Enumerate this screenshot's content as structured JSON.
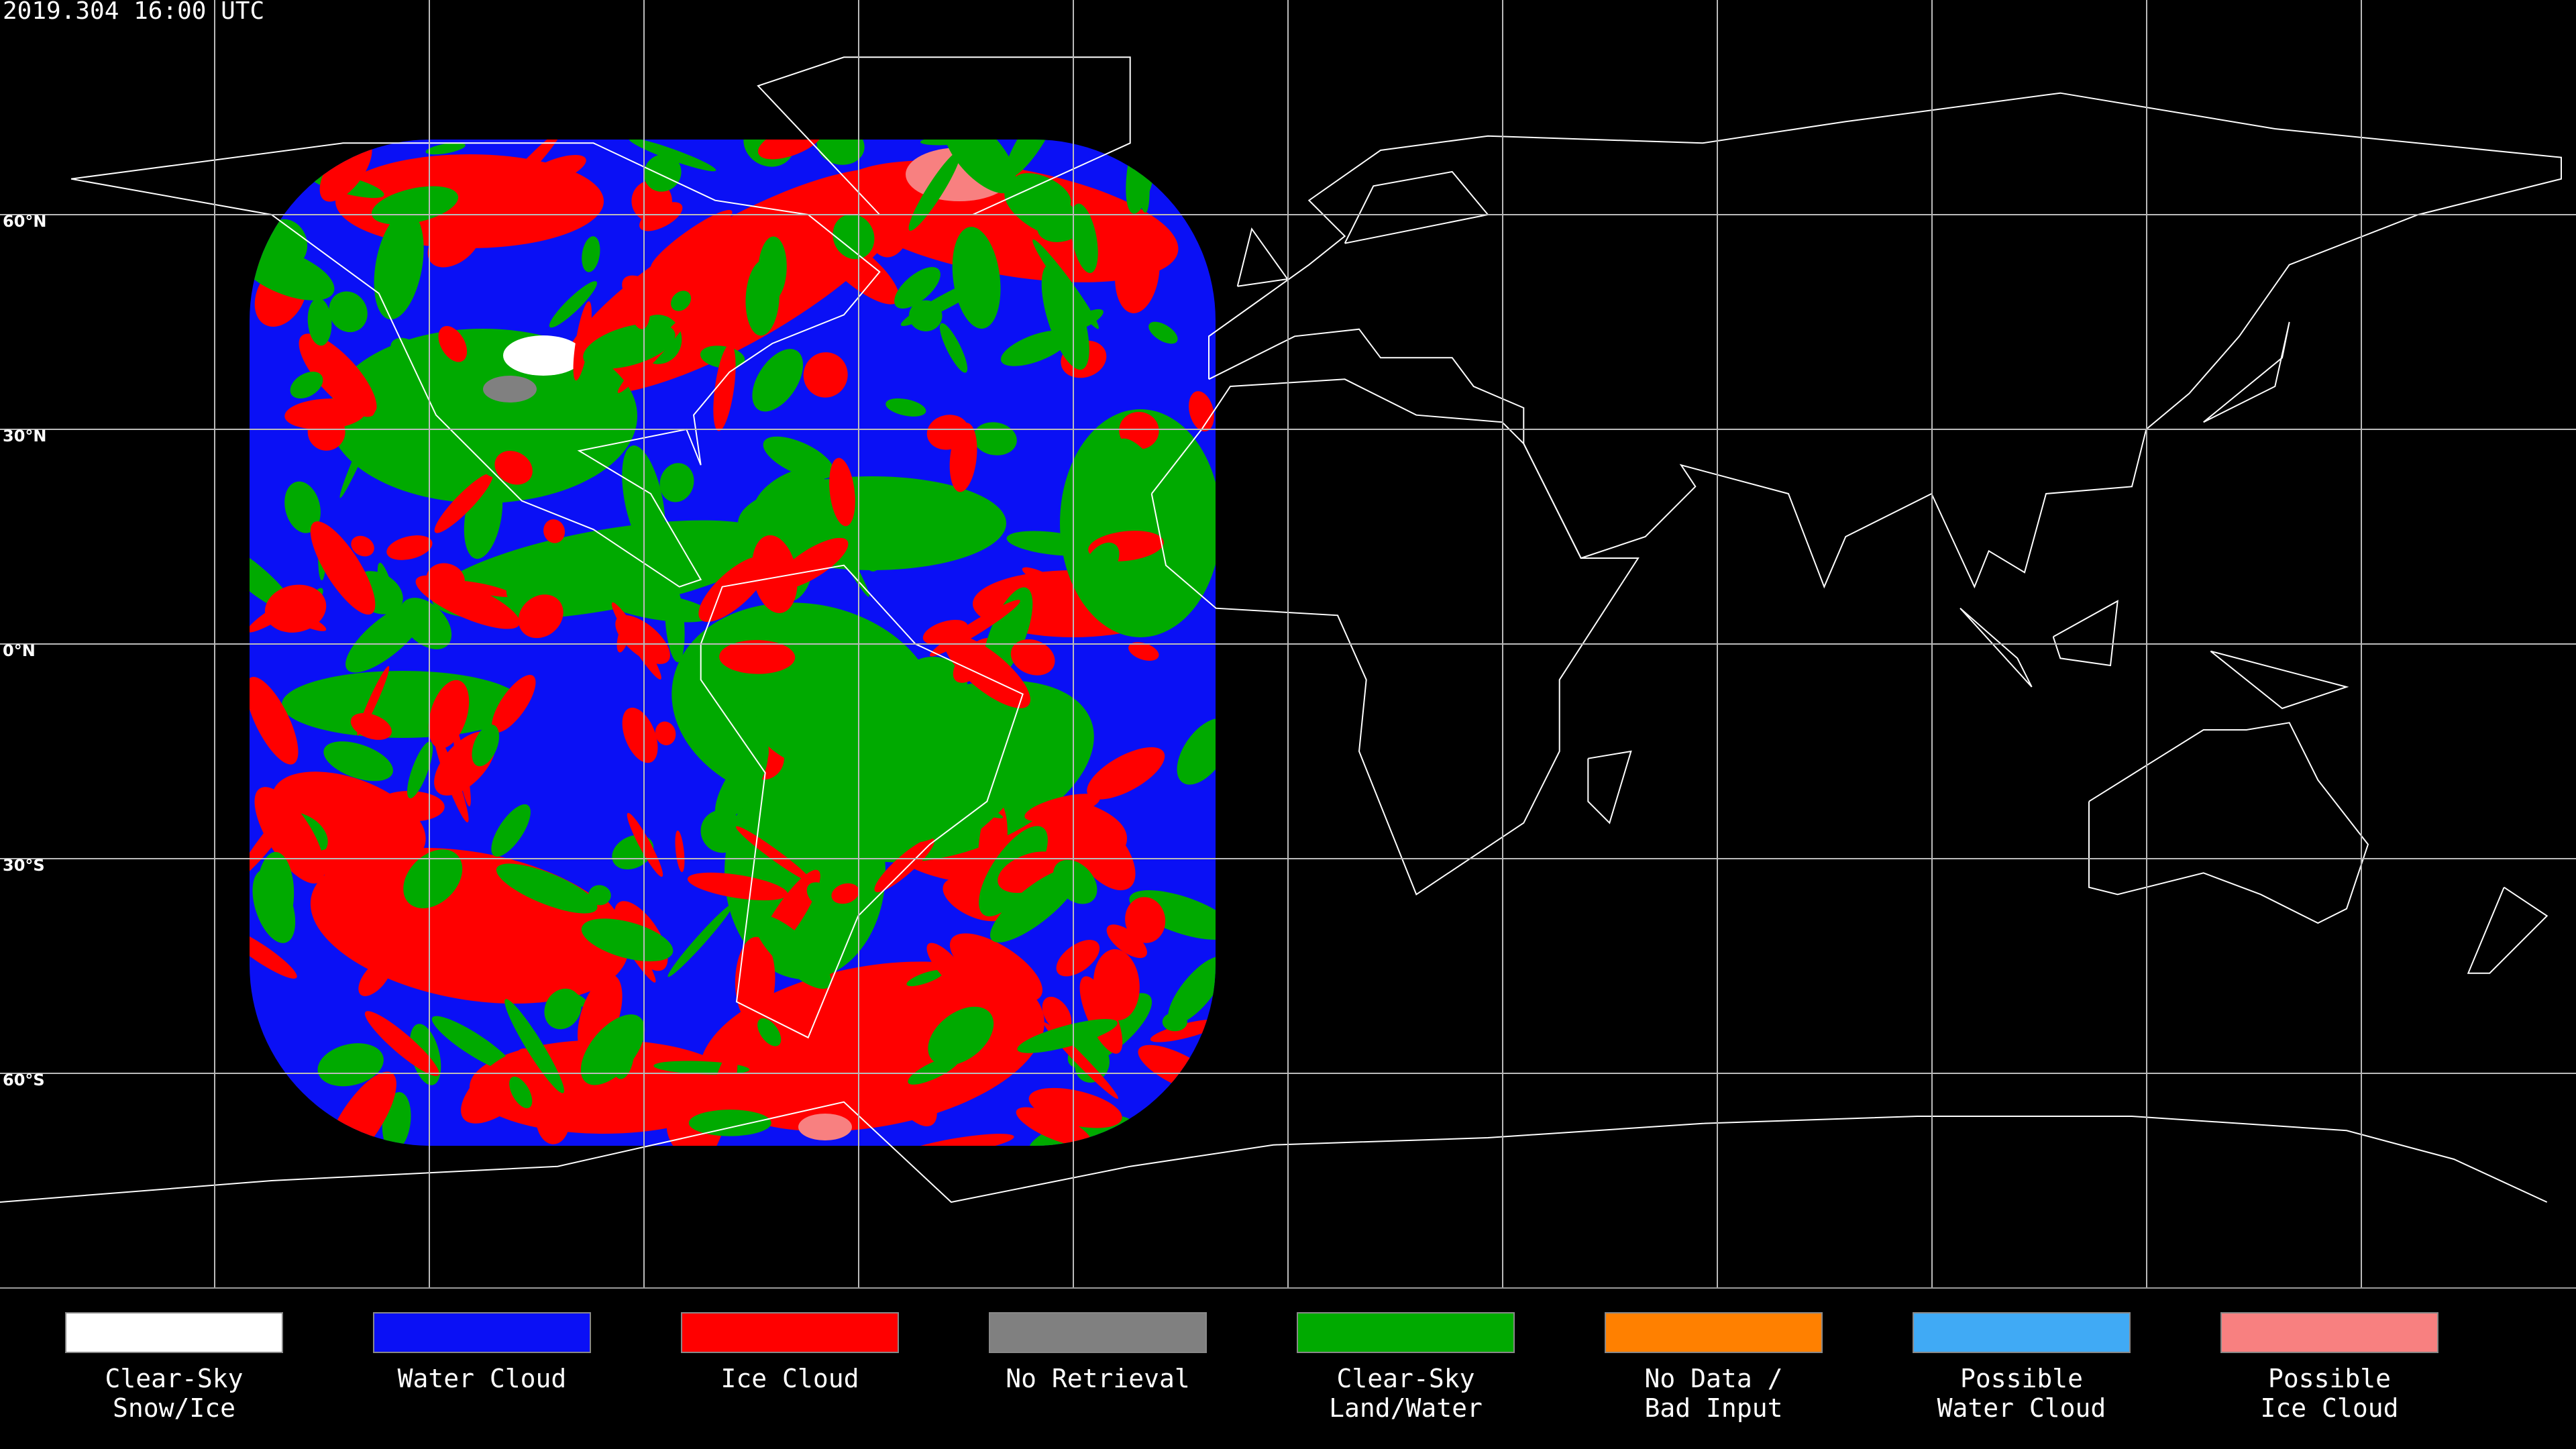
{
  "header": {
    "timestamp": "2019.304 16:00 UTC"
  },
  "map": {
    "latitude_labels": [
      "60°N",
      "30°N",
      "0°N",
      "30°S",
      "60°S"
    ]
  },
  "legend": [
    {
      "label": [
        "Clear-Sky",
        "Snow/Ice"
      ],
      "color": "#ffffff"
    },
    {
      "label": [
        "Water Cloud"
      ],
      "color": "#0a10f5"
    },
    {
      "label": [
        "Ice Cloud"
      ],
      "color": "#ff0000"
    },
    {
      "label": [
        "No Retrieval"
      ],
      "color": "#808080"
    },
    {
      "label": [
        "Clear-Sky",
        "Land/Water"
      ],
      "color": "#00aa00"
    },
    {
      "label": [
        "No Data /",
        "Bad Input"
      ],
      "color": "#ff8000"
    },
    {
      "label": [
        "Possible",
        "Water Cloud"
      ],
      "color": "#40aaf5"
    },
    {
      "label": [
        "Possible",
        "Ice Cloud"
      ],
      "color": "#f88080"
    }
  ]
}
